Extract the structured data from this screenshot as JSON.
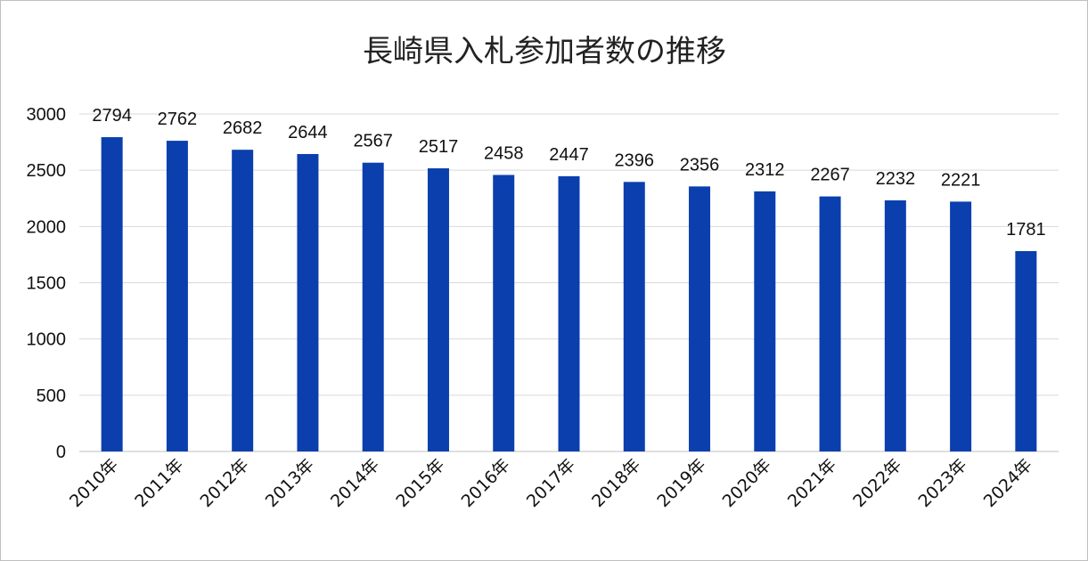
{
  "chart_data": {
    "type": "bar",
    "title": "長崎県入札参加者数の推移",
    "categories": [
      "2010年",
      "2011年",
      "2012年",
      "2013年",
      "2014年",
      "2015年",
      "2016年",
      "2017年",
      "2018年",
      "2019年",
      "2020年",
      "2021年",
      "2022年",
      "2023年",
      "2024年"
    ],
    "values": [
      2794,
      2762,
      2682,
      2644,
      2567,
      2517,
      2458,
      2447,
      2396,
      2356,
      2312,
      2267,
      2232,
      2221,
      1781
    ],
    "data_labels": [
      "2794",
      "2762",
      "2682",
      "2644",
      "2567",
      "2517",
      "2458",
      "2447",
      "2396",
      "2356",
      "2312",
      "2267",
      "2232",
      "2221",
      "1781"
    ],
    "yticks": [
      "0",
      "500",
      "1000",
      "1500",
      "2000",
      "2500",
      "3000"
    ],
    "ylim": [
      0,
      3000
    ],
    "grid": true,
    "legend": "none",
    "bar_color": "#0b3fae"
  }
}
